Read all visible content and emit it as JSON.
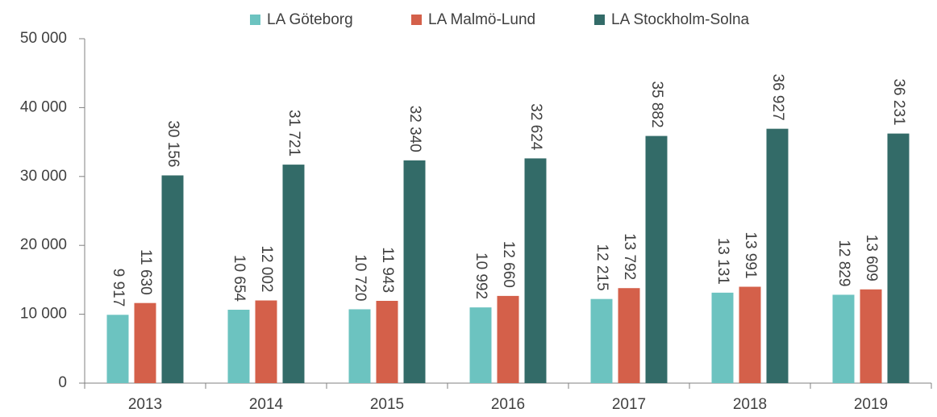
{
  "chart_data": {
    "type": "bar",
    "categories": [
      "2013",
      "2014",
      "2015",
      "2016",
      "2017",
      "2018",
      "2019"
    ],
    "series": [
      {
        "name": "LA Göteborg",
        "color": "#6cc3c0",
        "values": [
          9917,
          10654,
          10720,
          10992,
          12215,
          13131,
          12829
        ],
        "value_labels": [
          "9 917",
          "10 654",
          "10 720",
          "10 992",
          "12 215",
          "13 131",
          "12 829"
        ]
      },
      {
        "name": "LA Malmö-Lund",
        "color": "#d4604a",
        "values": [
          11630,
          12002,
          11943,
          12660,
          13792,
          13991,
          13609
        ],
        "value_labels": [
          "11 630",
          "12 002",
          "11 943",
          "12 660",
          "13 792",
          "13 991",
          "13 609"
        ]
      },
      {
        "name": "LA Stockholm-Solna",
        "color": "#336b68",
        "values": [
          30156,
          31721,
          32340,
          32624,
          35882,
          36927,
          36231
        ],
        "value_labels": [
          "30 156",
          "31 721",
          "32 340",
          "32 624",
          "35 882",
          "36 927",
          "36 231"
        ]
      }
    ],
    "ylim": [
      0,
      50000
    ],
    "yticks": [
      0,
      {
        "value": 10000,
        "label": "10 000"
      },
      {
        "value": 20000,
        "label": "20 000"
      },
      {
        "value": 30000,
        "label": "30 000"
      },
      {
        "value": 40000,
        "label": "40 000"
      },
      {
        "value": 50000,
        "label": "50 000"
      }
    ],
    "legend": "top",
    "grid": false
  }
}
